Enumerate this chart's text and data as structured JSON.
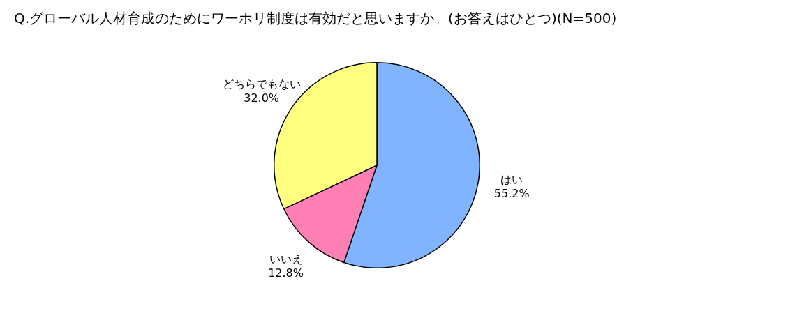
{
  "chart_data": {
    "type": "pie",
    "title": "Q.グローバル人材育成のためにワーホリ制度は有効だと思いますか。(お答えはひとつ)(N=500)",
    "categories": [
      "はい",
      "いいえ",
      "どちらでもない"
    ],
    "values": [
      55.2,
      12.8,
      32.0
    ],
    "colors": [
      "#80b4ff",
      "#ff80b4",
      "#ffff80"
    ],
    "value_labels": [
      "55.2%",
      "12.8%",
      "32.0%"
    ],
    "legend": false
  }
}
